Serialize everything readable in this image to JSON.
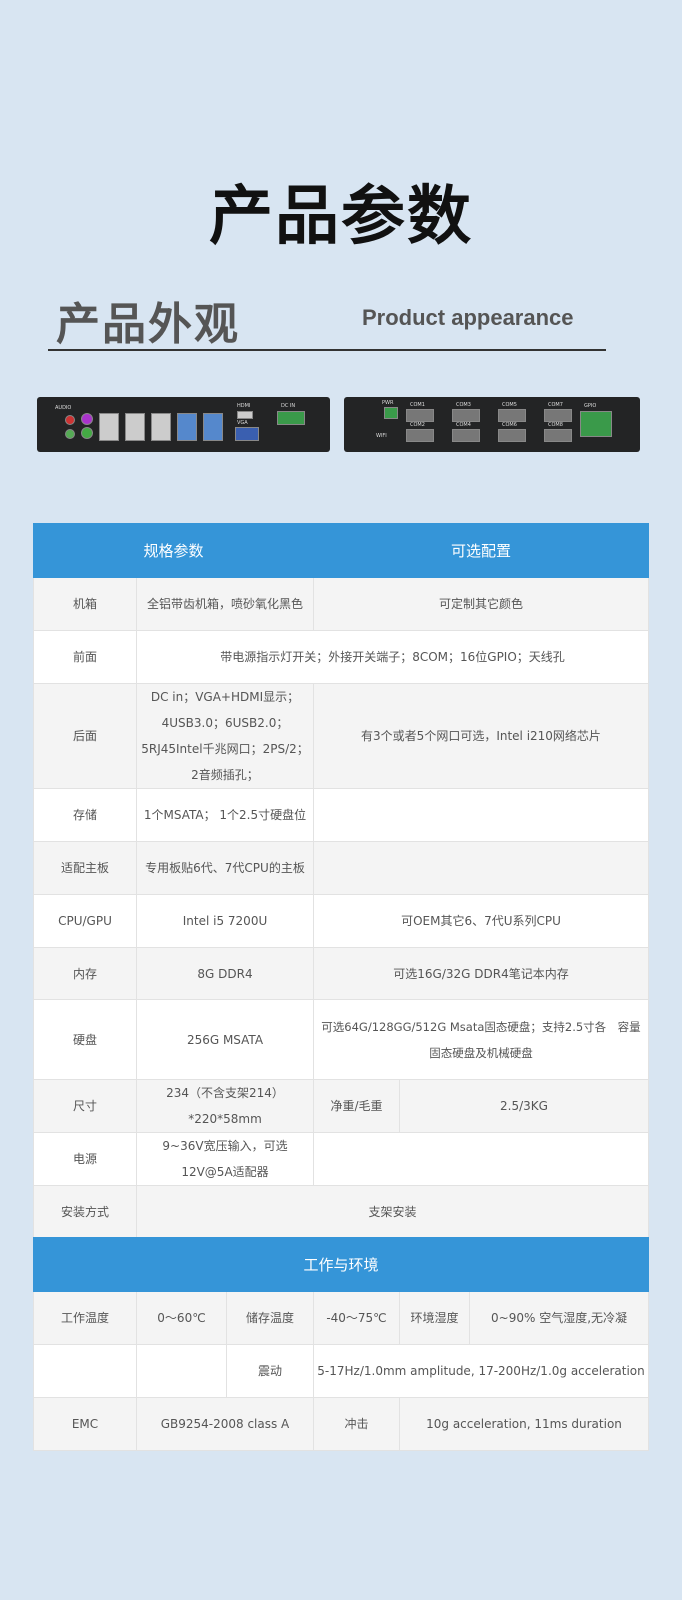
{
  "header": {
    "title": "产品参数",
    "subtitle_cn": "产品外观",
    "subtitle_en": "Product appearance"
  },
  "photos": {
    "left_labels": [
      "AUDIO",
      "PS/2",
      "HDMI",
      "HDMI",
      "HDMI",
      "HDMI",
      "HDMI",
      "HDMI",
      "VGA",
      "DC IN"
    ],
    "right_labels": [
      "PWR",
      "COM1",
      "COM3",
      "COM5",
      "COM7",
      "COM2",
      "COM4",
      "COM6",
      "COM8",
      "GPIO",
      "WIFI"
    ]
  },
  "spec": {
    "head": [
      "规格参数",
      "可选配置"
    ],
    "rows": [
      {
        "label": "机箱",
        "value": "全铝带齿机箱，喷砂氧化黑色",
        "option": "可定制其它颜色"
      },
      {
        "label": "前面",
        "value": "带电源指示灯开关；外接开关端子；8COM；16位GPIO；天线孔"
      },
      {
        "label": "后面",
        "value": "DC in；VGA+HDMI显示；4USB3.0；6USB2.0；5RJ45Intel千兆网口；2PS/2；2音频插孔；",
        "option": "有3个或者5个网口可选，Intel i210网络芯片"
      },
      {
        "label": "存储",
        "value": "1个MSATA； 1个2.5寸硬盘位",
        "option": ""
      },
      {
        "label": "适配主板",
        "value": "专用板贴6代、7代CPU的主板",
        "option": ""
      },
      {
        "label": "CPU/GPU",
        "value": "Intel i5 7200U",
        "option": "可OEM其它6、7代U系列CPU"
      },
      {
        "label": "内存",
        "value": "8G DDR4",
        "option": "可选16G/32G DDR4笔记本内存"
      },
      {
        "label": "硬盘",
        "value": "256G MSATA",
        "option": "可选64G/128GG/512G Msata固态硬盘；支持2.5寸各　容量固态硬盘及机械硬盘"
      },
      {
        "label": "尺寸",
        "value": "234（不含支架214）*220*58mm",
        "option_label": "净重/毛重",
        "option": "2.5/3KG"
      },
      {
        "label": "电源",
        "value": "9~36V宽压输入，可选12V@5A适配器",
        "option": ""
      },
      {
        "label": "安装方式",
        "value": "支架安装"
      }
    ]
  },
  "env": {
    "head": "工作与环境",
    "r1": [
      "工作温度",
      "0～60℃",
      "储存温度",
      "-40～75℃",
      "环境湿度",
      "0~90% 空气湿度,无冷凝"
    ],
    "r2": [
      "",
      "",
      "震动",
      "5-17Hz/1.0mm amplitude, 17-200Hz/1.0g acceleration"
    ],
    "r3": [
      "EMC",
      "GB9254-2008 class A",
      "冲击",
      "10g acceleration, 11ms duration"
    ]
  },
  "colors": {
    "accent": "#3595d8",
    "background": "#d8e5f2"
  }
}
